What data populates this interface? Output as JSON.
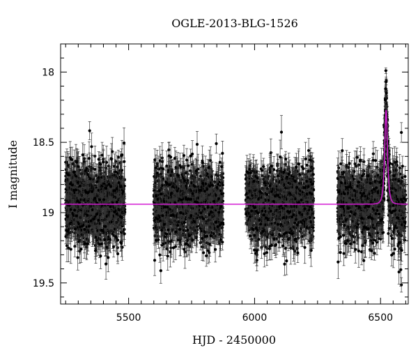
{
  "chart_data": {
    "type": "scatter",
    "title": "OGLE-2013-BLG-1526",
    "xlabel": "HJD - 2450000",
    "ylabel": "I magnitude",
    "xlim": [
      5230,
      6610
    ],
    "ylim": [
      19.65,
      17.8
    ],
    "y_inverted": true,
    "xticks": [
      5500,
      6000,
      6500
    ],
    "yticks": [
      18,
      18.5,
      19,
      19.5
    ],
    "grid": false,
    "colors": {
      "points": "#000000",
      "errorbars": "#333333",
      "model": "#d21ad2"
    },
    "seasons": [
      {
        "name": "",
        "x_start": 5250,
        "x_end": 5485,
        "count": 1100
      },
      {
        "name": "",
        "x_start": 5600,
        "x_end": 5875,
        "count": 1100
      },
      {
        "name": "",
        "x_start": 5965,
        "x_end": 6235,
        "count": 1100
      },
      {
        "name": "",
        "x_start": 6330,
        "x_end": 6600,
        "count": 1100
      }
    ],
    "baseline_magnitude": 18.94,
    "scatter_sigma": 0.14,
    "errorbar_typical": 0.08,
    "event": {
      "t0": 6522,
      "peak_magnitude": 18.27,
      "tE_days": 8.5
    },
    "brightest_points": [
      {
        "x": 6521,
        "y": 17.99
      },
      {
        "x": 6522,
        "y": 18.07
      },
      {
        "x": 6520,
        "y": 18.12
      },
      {
        "x": 6523,
        "y": 18.15
      },
      {
        "x": 6519,
        "y": 18.2
      }
    ],
    "series": [
      {
        "name": "",
        "kind": "data"
      },
      {
        "name": "",
        "kind": "model"
      }
    ]
  }
}
